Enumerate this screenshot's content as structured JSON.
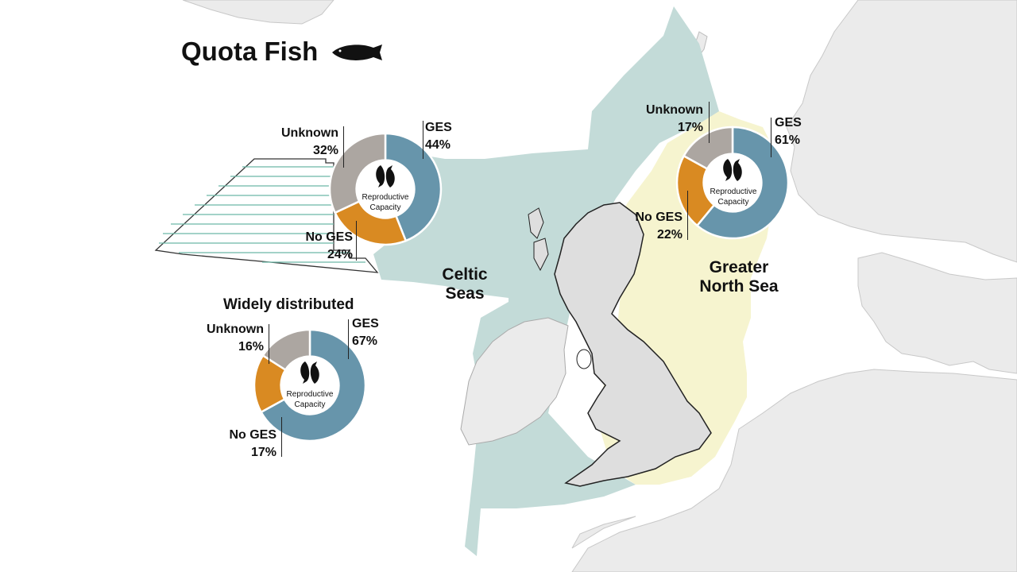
{
  "title": "Quota Fish",
  "regions": {
    "celtic_line1": "Celtic",
    "celtic_line2": "Seas",
    "north_line1": "Greater",
    "north_line2": "North Sea",
    "wide_title": "Widely distributed"
  },
  "center_label": {
    "line1": "Reproductive",
    "line2": "Capacity"
  },
  "colors": {
    "ges": "#6795ab",
    "no_ges": "#d98a22",
    "unknown": "#aca6a1",
    "celtic_seas": "#c3dbd8",
    "greater_north_sea": "#f6f4cf"
  },
  "chart_data": [
    {
      "type": "pie",
      "categories": [
        "GES",
        "No GES",
        "Unknown"
      ],
      "values": [
        44,
        24,
        32
      ],
      "display": [
        "44%",
        "24%",
        "32%"
      ]
    },
    {
      "type": "pie",
      "categories": [
        "GES",
        "No GES",
        "Unknown"
      ],
      "values": [
        61,
        22,
        17
      ],
      "display": [
        "61%",
        "22%",
        "17%"
      ]
    },
    {
      "type": "pie",
      "categories": [
        "GES",
        "No GES",
        "Unknown"
      ],
      "values": [
        67,
        17,
        16
      ],
      "display": [
        "67%",
        "17%",
        "16%"
      ]
    }
  ]
}
